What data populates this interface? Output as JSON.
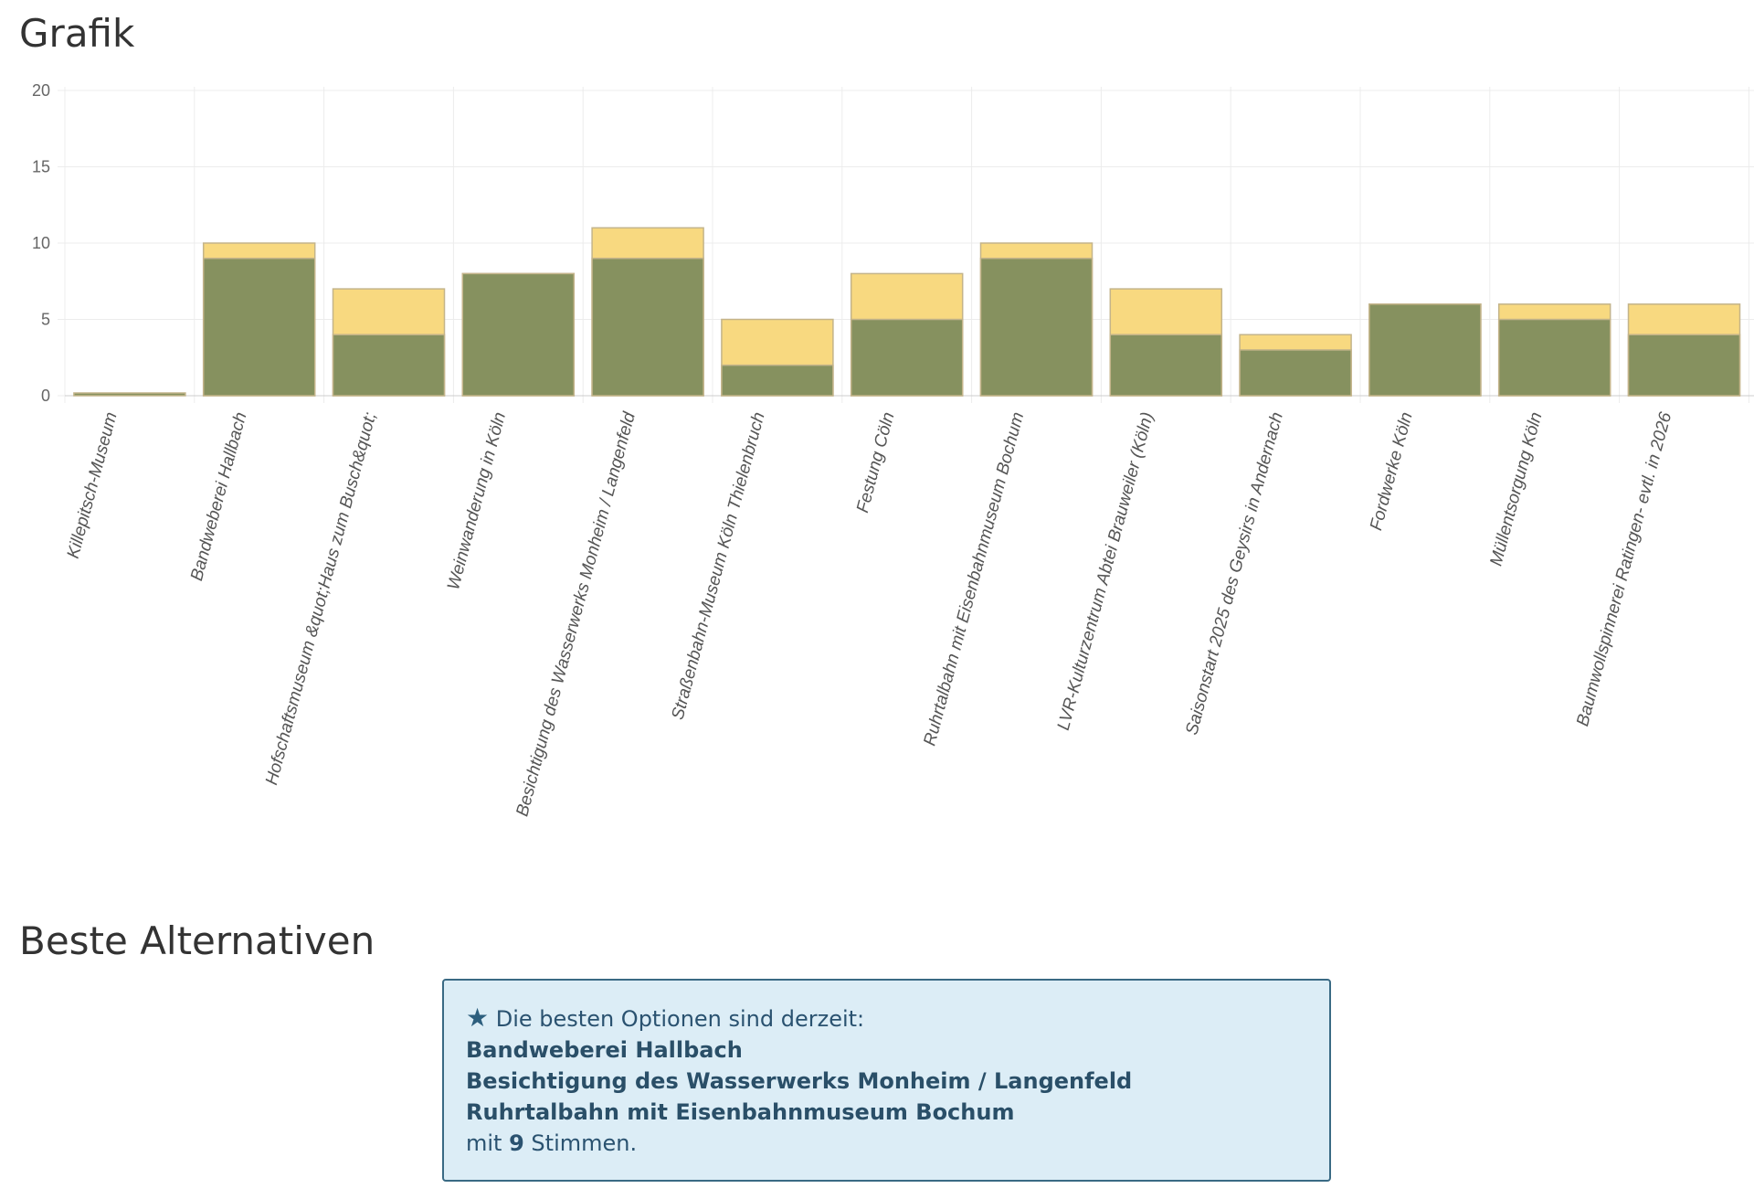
{
  "sections": {
    "chart_title": "Grafik",
    "best_title": "Beste Alternativen"
  },
  "colors": {
    "series_primary": "#86915f",
    "series_secondary": "#f8d980",
    "series_primary_border": "#c4b48a",
    "grid": "#ececec",
    "axis": "#cccccc",
    "alert_bg": "#dcedf6",
    "alert_border": "#3a6a84",
    "alert_text": "#2a5270"
  },
  "chart_data": {
    "type": "bar",
    "stacked_overlay": true,
    "categories": [
      "Killepitsch-Museum",
      "Bandweberei Hallbach",
      "Hofschaftsmuseum &quot;Haus zum Busch&quot;",
      "Weinwanderung in Köln",
      "Besichtigung des Wasserwerks Monheim / Langenfeld",
      "Straßenbahn-Museum Köln Thielenbruch",
      "Festung Cöln",
      "Ruhrtalbahn mit Eisenbahnmuseum Bochum",
      "LVR-Kulturzentrum Abtei Brauweiler (Köln)",
      "Saisonstart 2025 des Geysirs in Andernach",
      "Fordwerke Köln",
      "Müllentsorgung Köln",
      "Baumwollspinnerei Ratingen- evtl. in 2026"
    ],
    "series": [
      {
        "values": [
          0,
          9,
          4,
          8,
          9,
          2,
          5,
          9,
          4,
          3,
          6,
          5,
          4
        ],
        "color": "#86915f"
      },
      {
        "values": [
          0,
          10,
          7,
          8,
          11,
          5,
          8,
          10,
          7,
          4,
          6,
          6,
          6
        ],
        "color": "#f8d980"
      }
    ],
    "ylim": [
      0,
      20
    ],
    "yticks": [
      "0",
      "5",
      "10",
      "15",
      "20"
    ],
    "grid": true,
    "title": "",
    "xlabel": "",
    "ylabel": ""
  },
  "alert": {
    "star_icon": "★",
    "intro": " Die besten Optionen sind derzeit:",
    "options": [
      "Bandweberei Hallbach",
      "Besichtigung des Wasserwerks Monheim / Langenfeld",
      "Ruhrtalbahn mit Eisenbahnmuseum Bochum"
    ],
    "votes_prefix": "mit ",
    "votes_count": "9",
    "votes_suffix": " Stimmen."
  }
}
